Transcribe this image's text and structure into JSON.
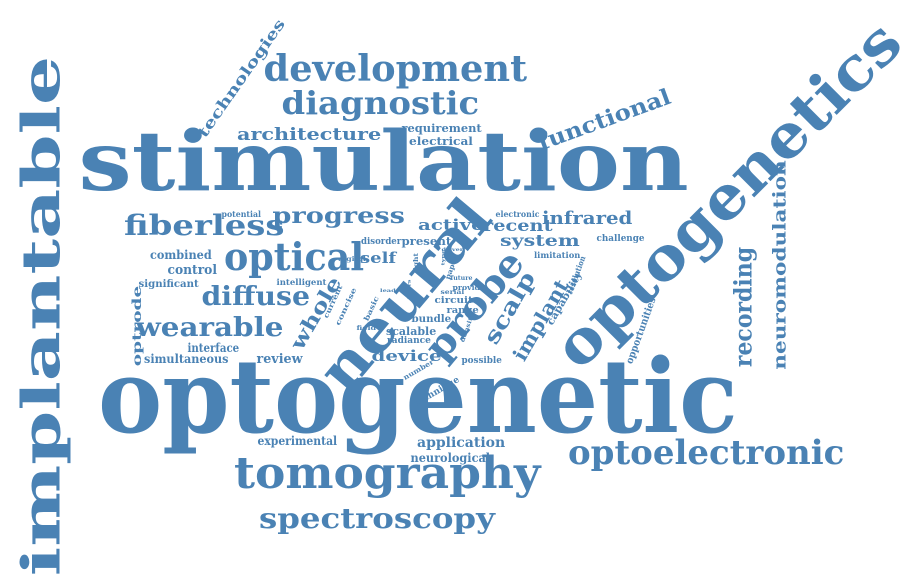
{
  "colors": {
    "word": "#4a82b4",
    "background": "#ffffff"
  },
  "words": [
    "optogenetic",
    "stimulation",
    "implantable",
    "optogenetics",
    "neural",
    "tomography",
    "optoelectronic",
    "probe",
    "optical",
    "development",
    "diagnostic",
    "spectroscopy",
    "wearable",
    "fiberless",
    "diffuse",
    "recording",
    "neuromodulation",
    "scalp",
    "implant",
    "progress",
    "functional",
    "whole",
    "technologies",
    "architecture",
    "infrared",
    "system",
    "recent",
    "active",
    "self",
    "device",
    "application",
    "optrode",
    "present",
    "requirement",
    "electrical",
    "interface",
    "simultaneous",
    "experimental",
    "neurological",
    "review",
    "control",
    "combined",
    "significant",
    "intelligent",
    "disorder",
    "scalable",
    "bundle",
    "radiance",
    "circuit",
    "range",
    "possible",
    "technique",
    "opportunities",
    "capability",
    "challenge",
    "limitation",
    "resolution",
    "potential",
    "electronic",
    "number",
    "digital",
    "concise",
    "current",
    "field",
    "basic",
    "light",
    "future",
    "provide",
    "serial",
    "paper",
    "density",
    "type",
    "driver",
    "lead",
    "fibers"
  ]
}
